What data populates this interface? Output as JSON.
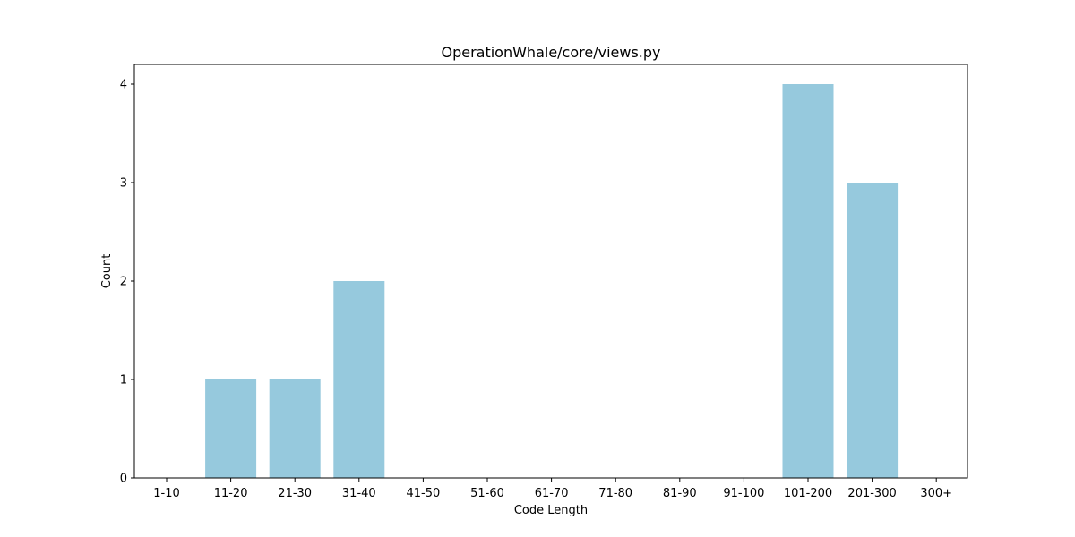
{
  "chart_data": {
    "type": "bar",
    "title": "OperationWhale/core/views.py",
    "xlabel": "Code Length",
    "ylabel": "Count",
    "categories": [
      "1-10",
      "11-20",
      "21-30",
      "31-40",
      "41-50",
      "51-60",
      "61-70",
      "71-80",
      "81-90",
      "91-100",
      "101-200",
      "201-300",
      "300+"
    ],
    "values": [
      0,
      1,
      1,
      2,
      0,
      0,
      0,
      0,
      0,
      0,
      4,
      3,
      0
    ],
    "ylim": [
      0,
      4.2
    ],
    "yticks": [
      0,
      1,
      2,
      3,
      4
    ],
    "grid": false,
    "bar_color": "#96c9dd"
  }
}
